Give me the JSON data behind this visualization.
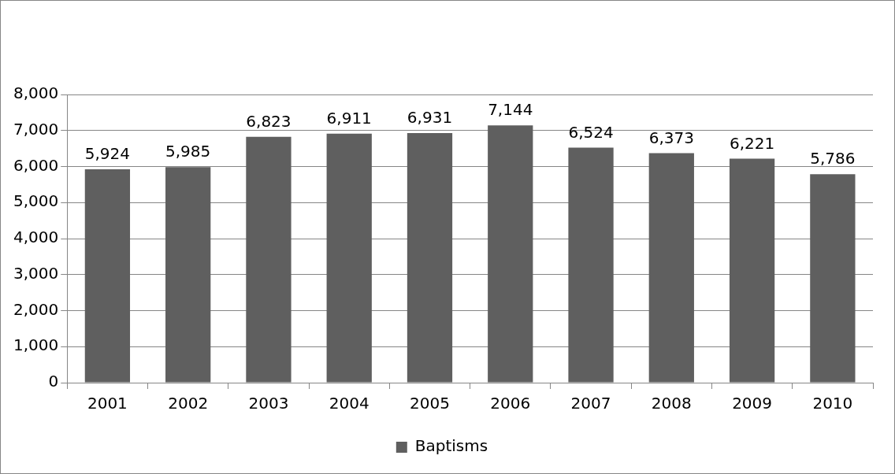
{
  "chart_data": {
    "type": "bar",
    "categories": [
      "2001",
      "2002",
      "2003",
      "2004",
      "2005",
      "2006",
      "2007",
      "2008",
      "2009",
      "2010"
    ],
    "series": [
      {
        "name": "Baptisms",
        "color": "#5f5f5f",
        "values": [
          5924,
          5985,
          6823,
          6911,
          6931,
          7144,
          6524,
          6373,
          6221,
          5786
        ],
        "value_labels": [
          "5,924",
          "5,985",
          "6,823",
          "6,911",
          "6,931",
          "7,144",
          "6,524",
          "6,373",
          "6,221",
          "5,786"
        ]
      }
    ],
    "ylim": [
      0,
      8000
    ],
    "yticks": [
      {
        "value": 0,
        "label": "0"
      },
      {
        "value": 1000,
        "label": "1,000"
      },
      {
        "value": 2000,
        "label": "2,000"
      },
      {
        "value": 3000,
        "label": "3,000"
      },
      {
        "value": 4000,
        "label": "4,000"
      },
      {
        "value": 5000,
        "label": "5,000"
      },
      {
        "value": 6000,
        "label": "6,000"
      },
      {
        "value": 7000,
        "label": "7,000"
      },
      {
        "value": 8000,
        "label": "8,000"
      }
    ],
    "grid": "y",
    "legend": "bottom"
  }
}
